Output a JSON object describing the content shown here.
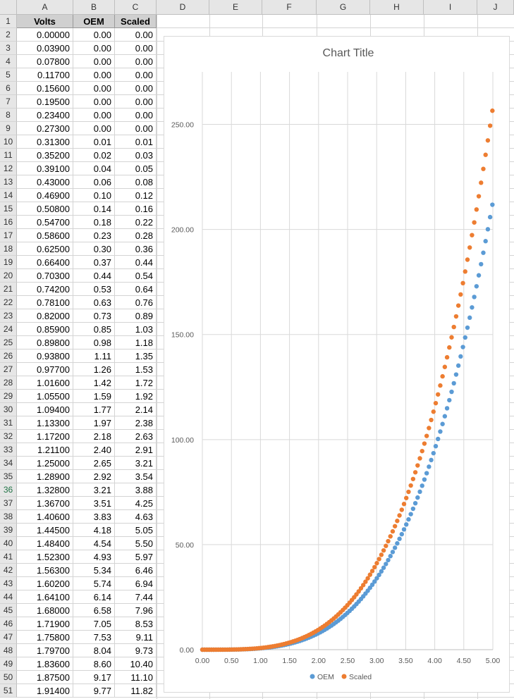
{
  "columns": [
    "A",
    "B",
    "C",
    "D",
    "E",
    "F",
    "G",
    "H",
    "I",
    "J"
  ],
  "headers": {
    "volts": "Volts",
    "oem": "OEM",
    "scaled": "Scaled"
  },
  "selected_row": "36",
  "rows": [
    {
      "n": "2",
      "v": "0.00000",
      "o": "0.00",
      "s": "0.00"
    },
    {
      "n": "3",
      "v": "0.03900",
      "o": "0.00",
      "s": "0.00"
    },
    {
      "n": "4",
      "v": "0.07800",
      "o": "0.00",
      "s": "0.00"
    },
    {
      "n": "5",
      "v": "0.11700",
      "o": "0.00",
      "s": "0.00"
    },
    {
      "n": "6",
      "v": "0.15600",
      "o": "0.00",
      "s": "0.00"
    },
    {
      "n": "7",
      "v": "0.19500",
      "o": "0.00",
      "s": "0.00"
    },
    {
      "n": "8",
      "v": "0.23400",
      "o": "0.00",
      "s": "0.00"
    },
    {
      "n": "9",
      "v": "0.27300",
      "o": "0.00",
      "s": "0.00"
    },
    {
      "n": "10",
      "v": "0.31300",
      "o": "0.01",
      "s": "0.01"
    },
    {
      "n": "11",
      "v": "0.35200",
      "o": "0.02",
      "s": "0.03"
    },
    {
      "n": "12",
      "v": "0.39100",
      "o": "0.04",
      "s": "0.05"
    },
    {
      "n": "13",
      "v": "0.43000",
      "o": "0.06",
      "s": "0.08"
    },
    {
      "n": "14",
      "v": "0.46900",
      "o": "0.10",
      "s": "0.12"
    },
    {
      "n": "15",
      "v": "0.50800",
      "o": "0.14",
      "s": "0.16"
    },
    {
      "n": "16",
      "v": "0.54700",
      "o": "0.18",
      "s": "0.22"
    },
    {
      "n": "17",
      "v": "0.58600",
      "o": "0.23",
      "s": "0.28"
    },
    {
      "n": "18",
      "v": "0.62500",
      "o": "0.30",
      "s": "0.36"
    },
    {
      "n": "19",
      "v": "0.66400",
      "o": "0.37",
      "s": "0.44"
    },
    {
      "n": "20",
      "v": "0.70300",
      "o": "0.44",
      "s": "0.54"
    },
    {
      "n": "21",
      "v": "0.74200",
      "o": "0.53",
      "s": "0.64"
    },
    {
      "n": "22",
      "v": "0.78100",
      "o": "0.63",
      "s": "0.76"
    },
    {
      "n": "23",
      "v": "0.82000",
      "o": "0.73",
      "s": "0.89"
    },
    {
      "n": "24",
      "v": "0.85900",
      "o": "0.85",
      "s": "1.03"
    },
    {
      "n": "25",
      "v": "0.89800",
      "o": "0.98",
      "s": "1.18"
    },
    {
      "n": "26",
      "v": "0.93800",
      "o": "1.11",
      "s": "1.35"
    },
    {
      "n": "27",
      "v": "0.97700",
      "o": "1.26",
      "s": "1.53"
    },
    {
      "n": "28",
      "v": "1.01600",
      "o": "1.42",
      "s": "1.72"
    },
    {
      "n": "29",
      "v": "1.05500",
      "o": "1.59",
      "s": "1.92"
    },
    {
      "n": "30",
      "v": "1.09400",
      "o": "1.77",
      "s": "2.14"
    },
    {
      "n": "31",
      "v": "1.13300",
      "o": "1.97",
      "s": "2.38"
    },
    {
      "n": "32",
      "v": "1.17200",
      "o": "2.18",
      "s": "2.63"
    },
    {
      "n": "33",
      "v": "1.21100",
      "o": "2.40",
      "s": "2.91"
    },
    {
      "n": "34",
      "v": "1.25000",
      "o": "2.65",
      "s": "3.21"
    },
    {
      "n": "35",
      "v": "1.28900",
      "o": "2.92",
      "s": "3.54"
    },
    {
      "n": "36",
      "v": "1.32800",
      "o": "3.21",
      "s": "3.88"
    },
    {
      "n": "37",
      "v": "1.36700",
      "o": "3.51",
      "s": "4.25"
    },
    {
      "n": "38",
      "v": "1.40600",
      "o": "3.83",
      "s": "4.63"
    },
    {
      "n": "39",
      "v": "1.44500",
      "o": "4.18",
      "s": "5.05"
    },
    {
      "n": "40",
      "v": "1.48400",
      "o": "4.54",
      "s": "5.50"
    },
    {
      "n": "41",
      "v": "1.52300",
      "o": "4.93",
      "s": "5.97"
    },
    {
      "n": "42",
      "v": "1.56300",
      "o": "5.34",
      "s": "6.46"
    },
    {
      "n": "43",
      "v": "1.60200",
      "o": "5.74",
      "s": "6.94"
    },
    {
      "n": "44",
      "v": "1.64100",
      "o": "6.14",
      "s": "7.44"
    },
    {
      "n": "45",
      "v": "1.68000",
      "o": "6.58",
      "s": "7.96"
    },
    {
      "n": "46",
      "v": "1.71900",
      "o": "7.05",
      "s": "8.53"
    },
    {
      "n": "47",
      "v": "1.75800",
      "o": "7.53",
      "s": "9.11"
    },
    {
      "n": "48",
      "v": "1.79700",
      "o": "8.04",
      "s": "9.73"
    },
    {
      "n": "49",
      "v": "1.83600",
      "o": "8.60",
      "s": "10.40"
    },
    {
      "n": "50",
      "v": "1.87500",
      "o": "9.17",
      "s": "11.10"
    },
    {
      "n": "51",
      "v": "1.91400",
      "o": "9.77",
      "s": "11.82"
    }
  ],
  "chart_data": {
    "type": "scatter",
    "title": "Chart Title",
    "xlim": [
      0,
      5
    ],
    "ylim": [
      0,
      275
    ],
    "xticks": [
      "0.00",
      "0.50",
      "1.00",
      "1.50",
      "2.00",
      "2.50",
      "3.00",
      "3.50",
      "4.00",
      "4.50",
      "5.00"
    ],
    "yticks": [
      "0.00",
      "50.00",
      "100.00",
      "150.00",
      "200.00",
      "250.00"
    ],
    "grid": true,
    "legend": "bottom",
    "series": [
      {
        "name": "OEM",
        "color": "#5b9bd5",
        "x_range": [
          0,
          5
        ],
        "x_step": 0.039,
        "exponent": 3.6,
        "y_max": 213
      },
      {
        "name": "Scaled",
        "color": "#ed7d31",
        "x_range": [
          0,
          5
        ],
        "x_step": 0.039,
        "exponent": 3.6,
        "y_max": 258
      }
    ]
  }
}
